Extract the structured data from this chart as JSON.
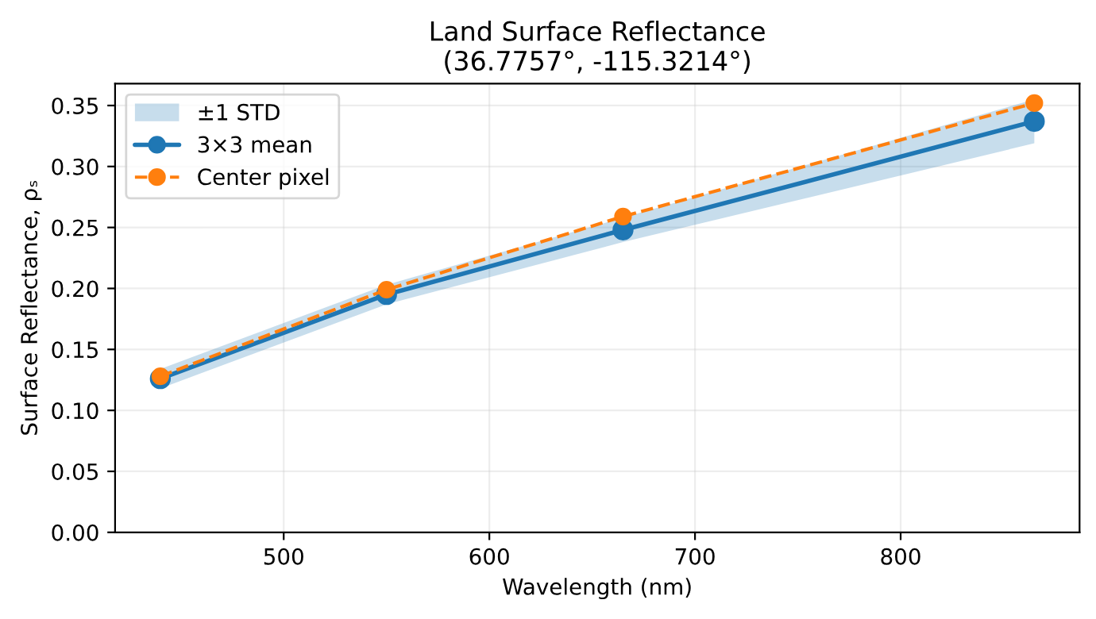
{
  "chart_data": {
    "type": "line",
    "title": "Land Surface Reflectance\n(36.7757°, -115.3214°)",
    "xlabel": "Wavelength (nm)",
    "ylabel": "Surface Reflectance, ρₛ",
    "x": [
      440,
      550,
      665,
      865
    ],
    "series": [
      {
        "name": "3×3 mean",
        "color": "#1f77b4",
        "values": [
          0.126,
          0.195,
          0.248,
          0.337
        ],
        "lower": [
          0.118,
          0.187,
          0.238,
          0.319
        ],
        "upper": [
          0.134,
          0.203,
          0.258,
          0.355
        ],
        "marker": "circle",
        "line_style": "solid"
      },
      {
        "name": "Center pixel",
        "color": "#ff7f0e",
        "values": [
          0.128,
          0.199,
          0.259,
          0.352
        ],
        "marker": "circle",
        "line_style": "dashed"
      }
    ],
    "xlim": [
      418,
      887
    ],
    "ylim": [
      0,
      0.368
    ],
    "xticks": [
      500,
      600,
      700,
      800
    ],
    "yticks": [
      {
        "value": 0,
        "label": "0.00"
      },
      0.05,
      {
        "value": 0.1,
        "label": "0.10"
      },
      0.15,
      {
        "value": 0.2,
        "label": "0.20"
      },
      0.25,
      {
        "value": 0.3,
        "label": "0.30"
      },
      0.35
    ],
    "annotations": [
      "±1 STD"
    ],
    "grid": true,
    "legend": "top left"
  }
}
